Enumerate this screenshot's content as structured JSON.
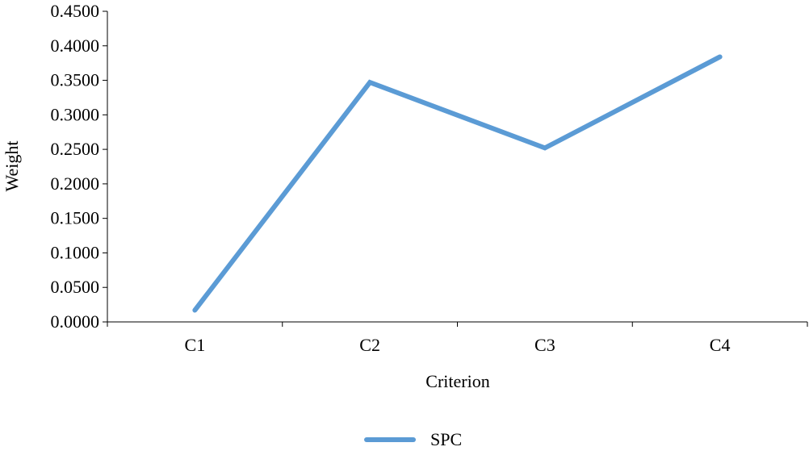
{
  "chart_data": {
    "type": "line",
    "title": "",
    "xlabel": "Criterion",
    "ylabel": "Weight",
    "categories": [
      "C1",
      "C2",
      "C3",
      "C4"
    ],
    "y_tick_labels": [
      "0.0000",
      "0.0500",
      "0.1000",
      "0.1500",
      "0.2000",
      "0.2500",
      "0.3000",
      "0.3500",
      "0.4000",
      "0.4500"
    ],
    "ylim": [
      0,
      0.45
    ],
    "grid": false,
    "legend_position": "bottom",
    "series": [
      {
        "name": "SPC",
        "values": [
          0.017,
          0.347,
          0.252,
          0.384
        ],
        "color": "#5B9BD5"
      }
    ]
  }
}
